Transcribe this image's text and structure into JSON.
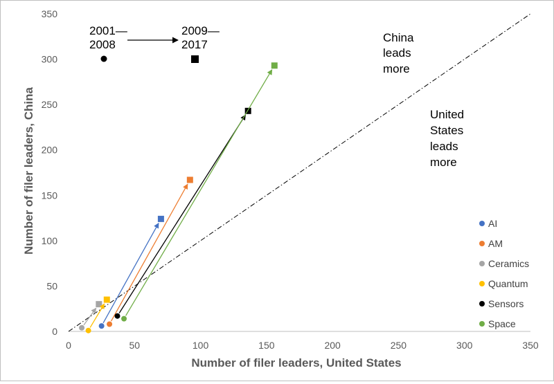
{
  "chart_data": {
    "type": "scatter",
    "xlabel": "Number of filer leaders, United States",
    "ylabel": "Number of filer leaders, China",
    "xlim": [
      0,
      350
    ],
    "ylim": [
      0,
      350
    ],
    "x_ticks": [
      "0",
      "50",
      "100",
      "150",
      "200",
      "250",
      "300",
      "350"
    ],
    "y_ticks": [
      "0",
      "50",
      "100",
      "150",
      "200",
      "250",
      "300",
      "350"
    ],
    "grid": false,
    "legend_position": "right",
    "period_legend": {
      "from_line1": "2001—",
      "from_line2": "2008",
      "to_line1": "2009—",
      "to_line2": "2017"
    },
    "annotations": {
      "china": [
        "China",
        "leads",
        "more"
      ],
      "us": [
        "United",
        "States",
        "leads",
        "more"
      ]
    },
    "reference_line": {
      "style": "dash-dot",
      "x": [
        0,
        350
      ],
      "y": [
        0,
        350
      ]
    },
    "series": [
      {
        "name": "AI",
        "color": "#4472C4",
        "points": [
          {
            "x": 25,
            "y": 6
          },
          {
            "x": 70,
            "y": 124
          }
        ]
      },
      {
        "name": "AM",
        "color": "#ED7D31",
        "points": [
          {
            "x": 31,
            "y": 8
          },
          {
            "x": 92,
            "y": 167
          }
        ]
      },
      {
        "name": "Ceramics",
        "color": "#A5A5A5",
        "points": [
          {
            "x": 10,
            "y": 4
          },
          {
            "x": 23,
            "y": 30
          }
        ]
      },
      {
        "name": "Quantum",
        "color": "#FFC000",
        "points": [
          {
            "x": 15,
            "y": 1
          },
          {
            "x": 29,
            "y": 35
          }
        ]
      },
      {
        "name": "Sensors",
        "color": "#000000",
        "points": [
          {
            "x": 37,
            "y": 17
          },
          {
            "x": 136,
            "y": 243
          }
        ]
      },
      {
        "name": "Space",
        "color": "#70AD47",
        "points": [
          {
            "x": 42,
            "y": 14
          },
          {
            "x": 156,
            "y": 293
          }
        ]
      }
    ]
  }
}
